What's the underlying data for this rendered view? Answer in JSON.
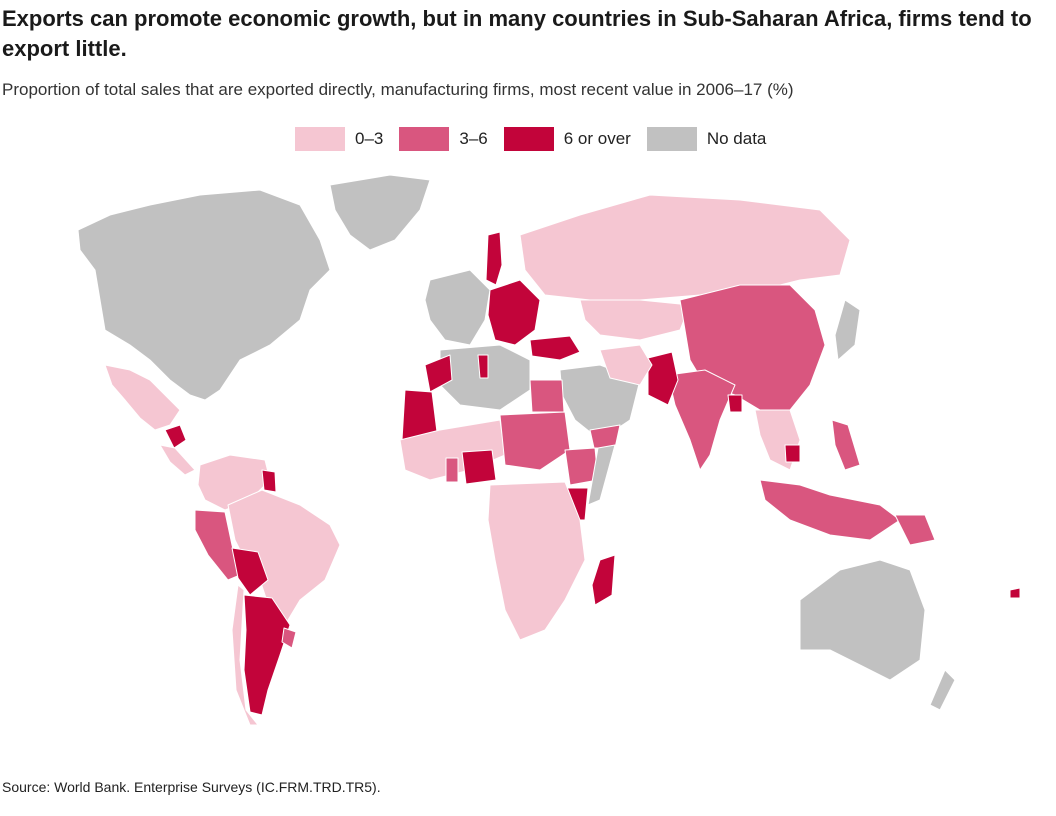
{
  "title": "Exports can promote economic growth, but in many countries in Sub-Saharan Africa, firms tend to export little.",
  "subtitle": "Proportion of total sales that are exported directly, manufacturing firms, most recent value in 2006–17 (%)",
  "legend": [
    {
      "label": "0–3",
      "color": "#f5c6d2"
    },
    {
      "label": "3–6",
      "color": "#d9567f"
    },
    {
      "label": "6 or over",
      "color": "#c2043a"
    },
    {
      "label": "No data",
      "color": "#c1c1c1"
    }
  ],
  "source": "Source: World Bank. Enterprise Surveys (IC.FRM.TRD.TR5).",
  "map_categories": {
    "6 or over": [
      "Mauritania",
      "Morocco",
      "Tunisia",
      "Nigeria",
      "Kenya",
      "Madagascar",
      "Turkey",
      "Pakistan",
      "Sweden",
      "Poland",
      "Romania",
      "Bolivia",
      "Argentina",
      "Guyana",
      "Honduras",
      "Cambodia",
      "Bangladesh",
      "Fiji"
    ],
    "3–6": [
      "China",
      "India",
      "Mongolia",
      "Egypt",
      "Sudan",
      "Ethiopia",
      "Yemen",
      "Chad",
      "Ghana",
      "Peru",
      "Uruguay",
      "Indonesia",
      "Malaysia",
      "Philippines",
      "Papua New Guinea"
    ],
    "0–3": [
      "Russia",
      "Kazakhstan",
      "Brazil",
      "Mexico",
      "Colombia",
      "Venezuela",
      "Chile",
      "DR Congo",
      "Angola",
      "Zambia",
      "Tanzania",
      "South Africa",
      "Namibia",
      "Mozambique",
      "Mali",
      "Niger",
      "Thailand",
      "Vietnam",
      "Iran",
      "Afghanistan"
    ],
    "No data": [
      "United States",
      "Canada",
      "Greenland",
      "Australia",
      "Japan",
      "Western Europe",
      "Libya",
      "Algeria",
      "Saudi Arabia",
      "Somalia"
    ]
  }
}
